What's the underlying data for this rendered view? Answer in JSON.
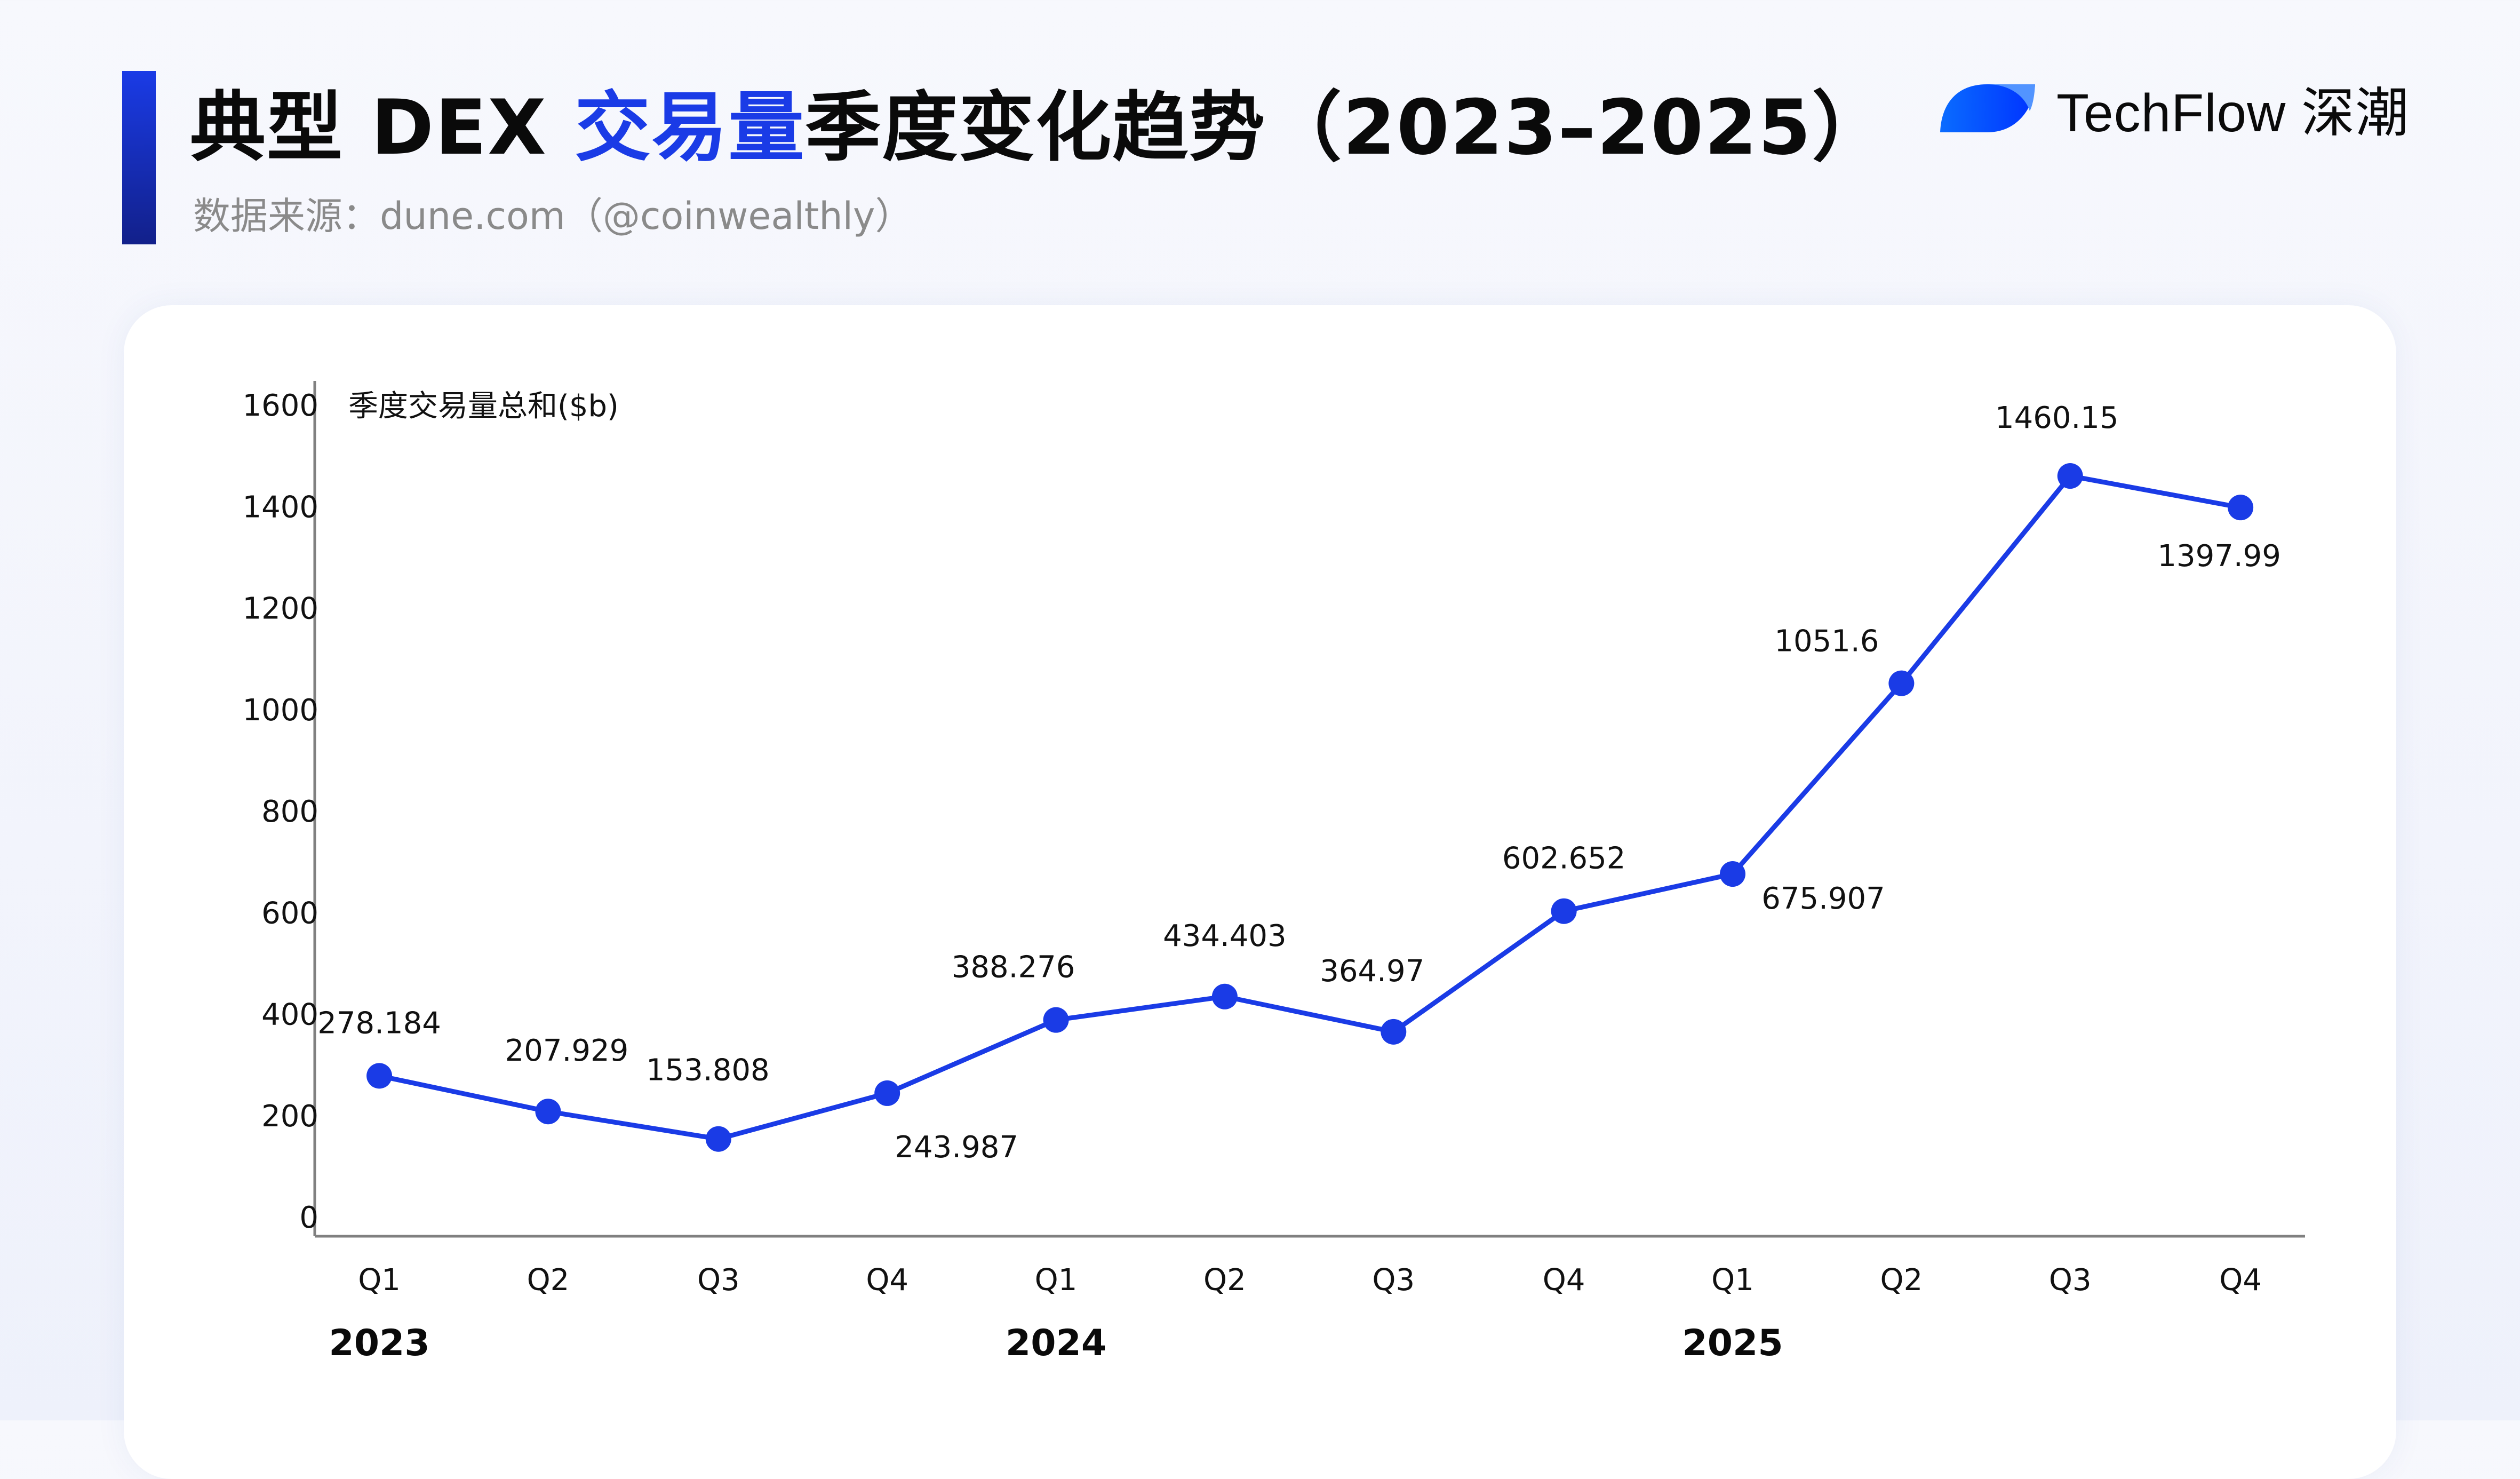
{
  "header": {
    "title_prefix": "典型 DEX ",
    "title_highlight": "交易量",
    "title_suffix": "季度变化趋势（2023–2025）",
    "subtitle": "数据来源：dune.com（@coinwealthly）",
    "accent_color": "#1a3be6"
  },
  "brand": {
    "name": "TechFlow 深潮",
    "logo_icon": "leaf-logo-icon"
  },
  "chart_data": {
    "type": "line",
    "title": "典型 DEX 交易量季度变化趋势（2023–2025）",
    "ylabel": "季度交易量总和($b)",
    "xlabel": "",
    "categories": [
      "2023 Q1",
      "2023 Q2",
      "2023 Q3",
      "2023 Q4",
      "2024 Q1",
      "2024 Q2",
      "2024 Q3",
      "2024 Q4",
      "2025 Q1",
      "2025 Q2",
      "2025 Q3",
      "2025 Q4"
    ],
    "quarter_labels": [
      "Q1",
      "Q2",
      "Q3",
      "Q4",
      "Q1",
      "Q2",
      "Q3",
      "Q4",
      "Q1",
      "Q2",
      "Q3",
      "Q4"
    ],
    "year_labels": [
      {
        "label": "2023",
        "index": 0
      },
      {
        "label": "2024",
        "index": 4
      },
      {
        "label": "2025",
        "index": 8
      }
    ],
    "series": [
      {
        "name": "季度交易量总和($b)",
        "color": "#1a3be6",
        "values": [
          278.184,
          207.929,
          153.808,
          243.987,
          388.276,
          434.403,
          364.97,
          602.652,
          675.907,
          1051.6,
          1460.15,
          1397.99
        ],
        "value_labels": [
          "278.184",
          "207.929",
          "153.808",
          "243.987",
          "388.276",
          "434.403",
          "364.97",
          "602.652",
          "675.907",
          "1051.6",
          "1460.15",
          "1397.99"
        ],
        "label_positions": [
          "above",
          "above",
          "above",
          "below",
          "above",
          "above",
          "above",
          "above",
          "below",
          "above",
          "above",
          "below"
        ]
      }
    ],
    "yticks": [
      0,
      200,
      400,
      600,
      800,
      1000,
      1200,
      1400,
      1600
    ],
    "ylim": [
      0,
      1600
    ],
    "grid": false,
    "legend": "none"
  }
}
